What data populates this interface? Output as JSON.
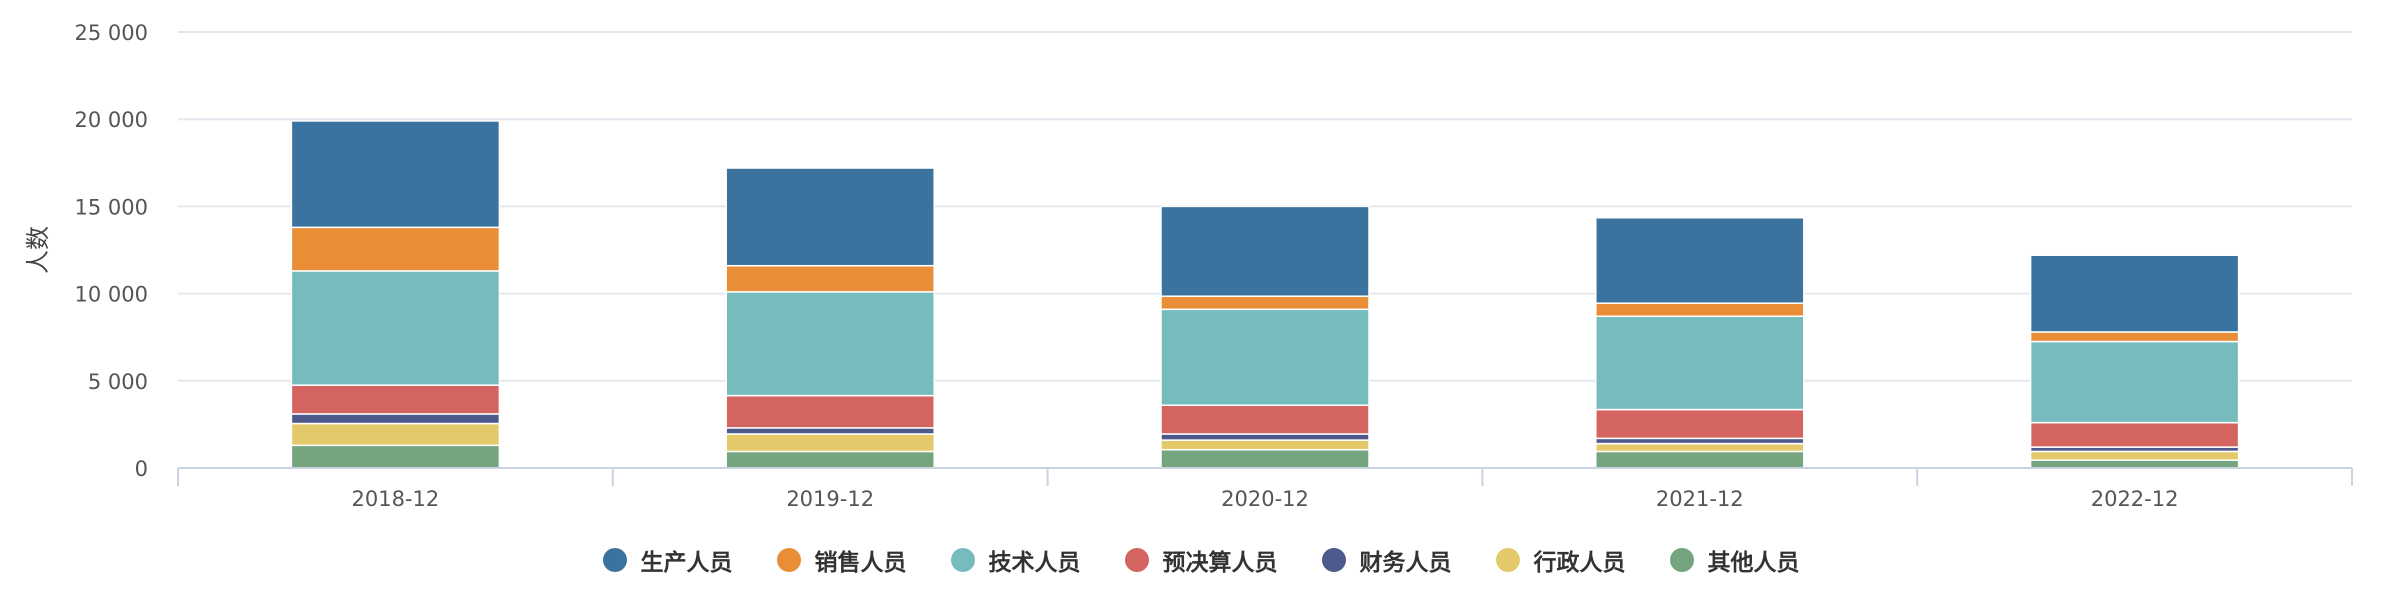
{
  "chart_data": {
    "type": "bar",
    "stacked": true,
    "categories": [
      "2018-12",
      "2019-12",
      "2020-12",
      "2021-12",
      "2022-12"
    ],
    "ylabel": "人数",
    "ylim": [
      0,
      25000
    ],
    "yticks": [
      0,
      5000,
      10000,
      15000,
      20000,
      25000
    ],
    "ytick_labels": [
      "0",
      "5 000",
      "10 000",
      "15 000",
      "20 000",
      "25 000"
    ],
    "grid": true,
    "legend_position": "bottom-center",
    "series": [
      {
        "name": "其他人员",
        "color": "#74a57f",
        "values": [
          1300,
          950,
          1050,
          950,
          450
        ]
      },
      {
        "name": "行政人员",
        "color": "#e4c96a",
        "values": [
          1250,
          1000,
          550,
          450,
          500
        ]
      },
      {
        "name": "财务人员",
        "color": "#4e5a8c",
        "values": [
          550,
          350,
          350,
          300,
          250
        ]
      },
      {
        "name": "预决算人员",
        "color": "#d4645f",
        "values": [
          1650,
          1850,
          1650,
          1650,
          1400
        ]
      },
      {
        "name": "技术人员",
        "color": "#77bcbd",
        "values": [
          6550,
          5950,
          5500,
          5350,
          4650
        ]
      },
      {
        "name": "销售人员",
        "color": "#e98d37",
        "values": [
          2500,
          1500,
          750,
          750,
          550
        ]
      },
      {
        "name": "生产人员",
        "color": "#3b739e",
        "values": [
          6100,
          5600,
          5150,
          4900,
          4400
        ]
      }
    ]
  },
  "legend": {
    "items": [
      {
        "label": "生产人员",
        "color": "#3b739e"
      },
      {
        "label": "销售人员",
        "color": "#e98d37"
      },
      {
        "label": "技术人员",
        "color": "#77bcbd"
      },
      {
        "label": "预决算人员",
        "color": "#d4645f"
      },
      {
        "label": "财务人员",
        "color": "#4e5a8c"
      },
      {
        "label": "行政人员",
        "color": "#e4c96a"
      },
      {
        "label": "其他人员",
        "color": "#74a57f"
      }
    ]
  }
}
